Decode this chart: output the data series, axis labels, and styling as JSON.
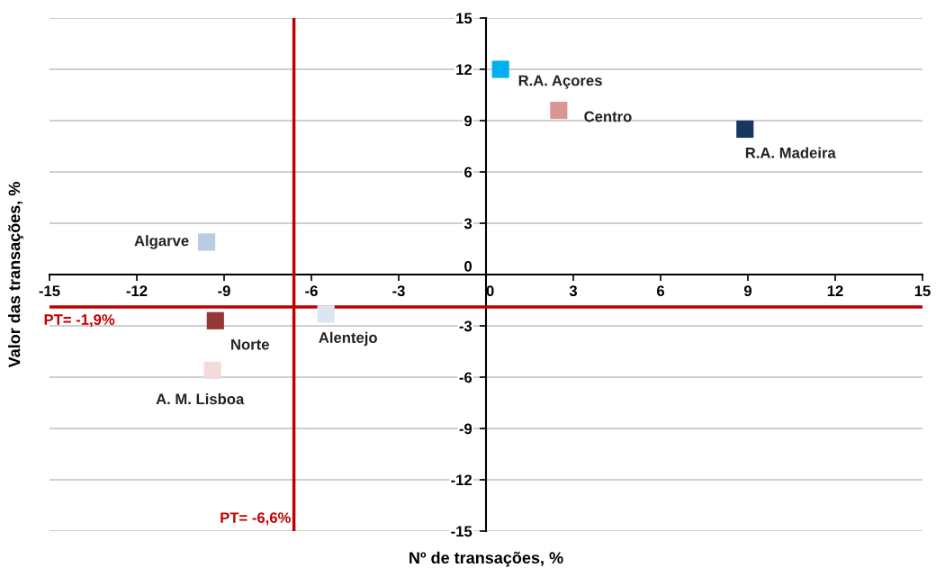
{
  "chart_data": {
    "type": "scatter",
    "xlabel": "Nº de transações, %",
    "ylabel": "Valor das transações, %",
    "xlim": [
      -15,
      15
    ],
    "xticks": [
      -15,
      -12,
      -9,
      -6,
      -3,
      0,
      3,
      6,
      9,
      12,
      15
    ],
    "ylim": [
      -15,
      15
    ],
    "yticks": [
      -15,
      -12,
      -9,
      -6,
      -3,
      0,
      3,
      6,
      9,
      12,
      15
    ],
    "grid": "y",
    "legend": false,
    "marker": "square",
    "series": [
      {
        "name": "R.A. Açores",
        "color": "#00b0f0",
        "x": [
          0.5
        ],
        "values": [
          12.0
        ]
      },
      {
        "name": "Centro",
        "color": "#da9694",
        "x": [
          2.5
        ],
        "values": [
          9.6
        ]
      },
      {
        "name": "R.A. Madeira",
        "color": "#17375e",
        "x": [
          8.9
        ],
        "values": [
          8.5
        ]
      },
      {
        "name": "Algarve",
        "color": "#b8cce4",
        "x": [
          -9.6
        ],
        "values": [
          1.9
        ]
      },
      {
        "name": "Norte",
        "color": "#953735",
        "x": [
          -9.3
        ],
        "values": [
          -2.7
        ]
      },
      {
        "name": "Alentejo",
        "color": "#dce6f1",
        "x": [
          -5.5
        ],
        "values": [
          -2.3
        ]
      },
      {
        "name": "A. M. Lisboa",
        "color": "#f2dcdb",
        "x": [
          -9.4
        ],
        "values": [
          -5.6
        ]
      }
    ],
    "ref_lines": [
      {
        "axis": "x",
        "value": -6.6,
        "label": "PT= -6,6%",
        "color": "#c00000"
      },
      {
        "axis": "y",
        "value": -1.9,
        "label": "PT= -1,9%",
        "color": "#c00000"
      }
    ]
  }
}
